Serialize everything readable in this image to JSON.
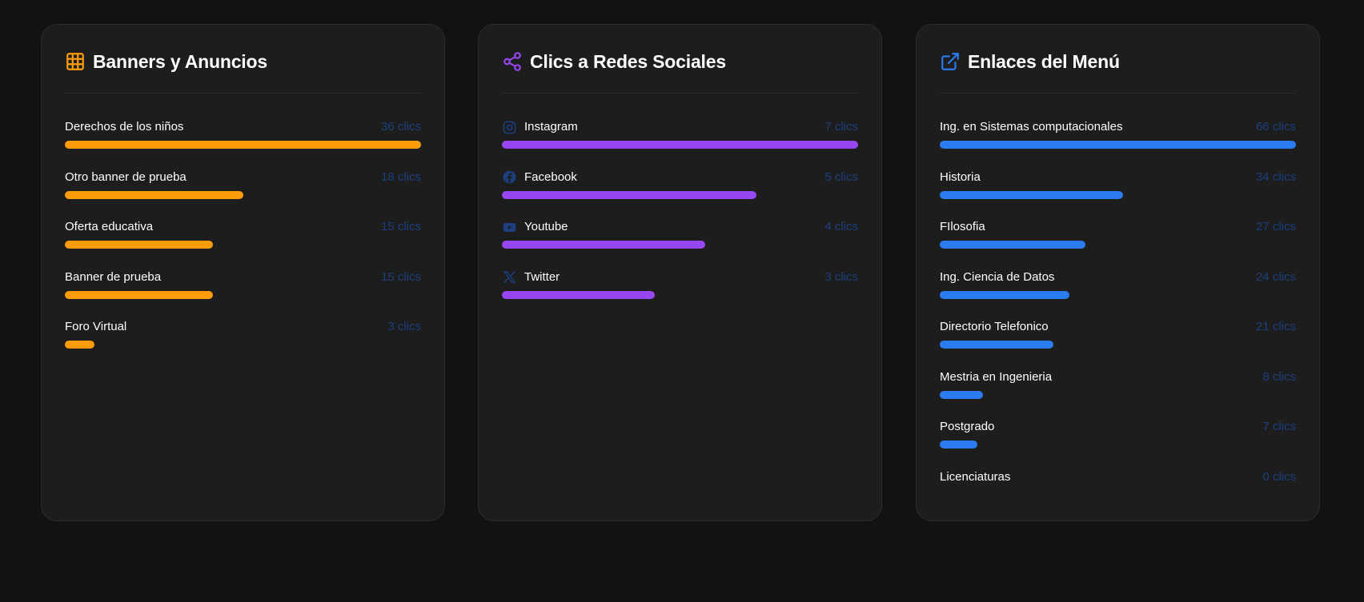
{
  "colors": {
    "banners": "#ff9c0b",
    "social": "#9647f0",
    "menu": "#2b7bf1",
    "count_text": "#1d3f7e"
  },
  "banners": {
    "title": "Banners y Anuncios",
    "icon": "grid-icon",
    "items": [
      {
        "label": "Derechos de los niños",
        "count": "36 clics",
        "value": 36
      },
      {
        "label": "Otro banner de prueba",
        "count": "18 clics",
        "value": 18
      },
      {
        "label": "Oferta educativa",
        "count": "15 clics",
        "value": 15
      },
      {
        "label": "Banner de prueba",
        "count": "15 clics",
        "value": 15
      },
      {
        "label": "Foro Virtual",
        "count": "3 clics",
        "value": 3
      }
    ]
  },
  "social": {
    "title": "Clics a Redes Sociales",
    "icon": "share-icon",
    "items": [
      {
        "label": "Instagram",
        "count": "7 clics",
        "value": 7,
        "icon": "instagram-icon"
      },
      {
        "label": "Facebook",
        "count": "5 clics",
        "value": 5,
        "icon": "facebook-icon"
      },
      {
        "label": "Youtube",
        "count": "4 clics",
        "value": 4,
        "icon": "youtube-icon"
      },
      {
        "label": "Twitter",
        "count": "3 clics",
        "value": 3,
        "icon": "x-twitter-icon"
      }
    ]
  },
  "menu": {
    "title": "Enlaces del Menú",
    "icon": "external-link-icon",
    "items": [
      {
        "label": "Ing. en Sistemas computacionales",
        "count": "66 clics",
        "value": 66
      },
      {
        "label": "Historia",
        "count": "34 clics",
        "value": 34
      },
      {
        "label": "FIlosofia",
        "count": "27 clics",
        "value": 27
      },
      {
        "label": "Ing. Ciencia de Datos",
        "count": "24 clics",
        "value": 24
      },
      {
        "label": "Directorio Telefonico",
        "count": "21 clics",
        "value": 21
      },
      {
        "label": "Mestria en Ingenieria",
        "count": "8 clics",
        "value": 8
      },
      {
        "label": "Postgrado",
        "count": "7 clics",
        "value": 7
      },
      {
        "label": "Licenciaturas",
        "count": "0 clics",
        "value": 0
      }
    ]
  }
}
